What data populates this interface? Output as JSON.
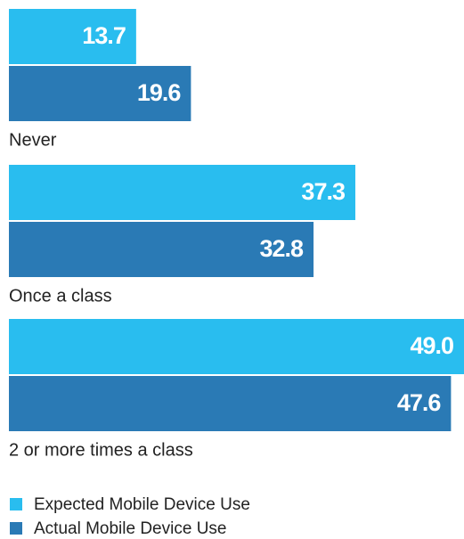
{
  "chart_data": {
    "type": "hbar",
    "categories": [
      "Never",
      "Once a class",
      "2 or more times a class"
    ],
    "series": [
      {
        "name": "Expected Mobile Device Use",
        "color": "#29bdef",
        "values": [
          13.7,
          37.3,
          49.0
        ],
        "value_labels": [
          "13.7",
          "37.3",
          "49.0"
        ]
      },
      {
        "name": "Actual Mobile Device Use",
        "color": "#2a7ab5",
        "values": [
          19.6,
          32.8,
          47.6
        ],
        "value_labels": [
          "19.6",
          "32.8",
          "47.6"
        ]
      }
    ],
    "xlim": [
      0,
      49
    ]
  }
}
